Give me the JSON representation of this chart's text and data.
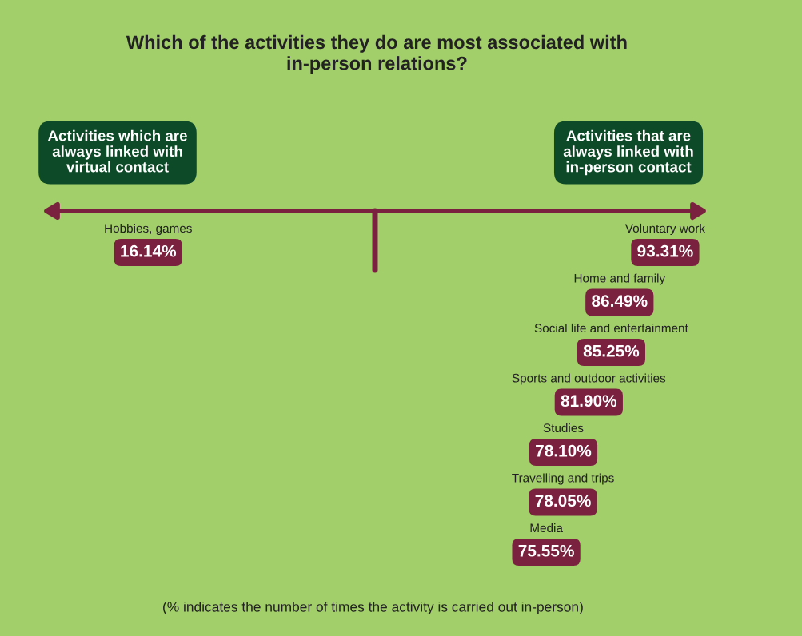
{
  "chart_data": {
    "type": "other",
    "title": "Which of the activities they do are most associated with\nin-person relations?",
    "categories": [
      "Hobbies, games",
      "Voluntary work",
      "Home and family",
      "Social life and entertainment",
      "Sports and outdoor activities",
      "Studies",
      "Travelling and trips",
      "Media"
    ],
    "values": [
      16.14,
      93.31,
      86.49,
      85.25,
      81.9,
      78.1,
      78.05,
      75.55
    ],
    "value_labels": [
      "16.14%",
      "93.31%",
      "86.49%",
      "85.25%",
      "81.90%",
      "78.10%",
      "78.05%",
      "75.55%"
    ],
    "color": "#7b2140",
    "annotations": [
      "Activities which are\nalways linked with\nvirtual contact",
      "Activities that are\nalways linked with\nin-person contact",
      "(% indicates the number of times the activity is carried out in-person)"
    ]
  }
}
